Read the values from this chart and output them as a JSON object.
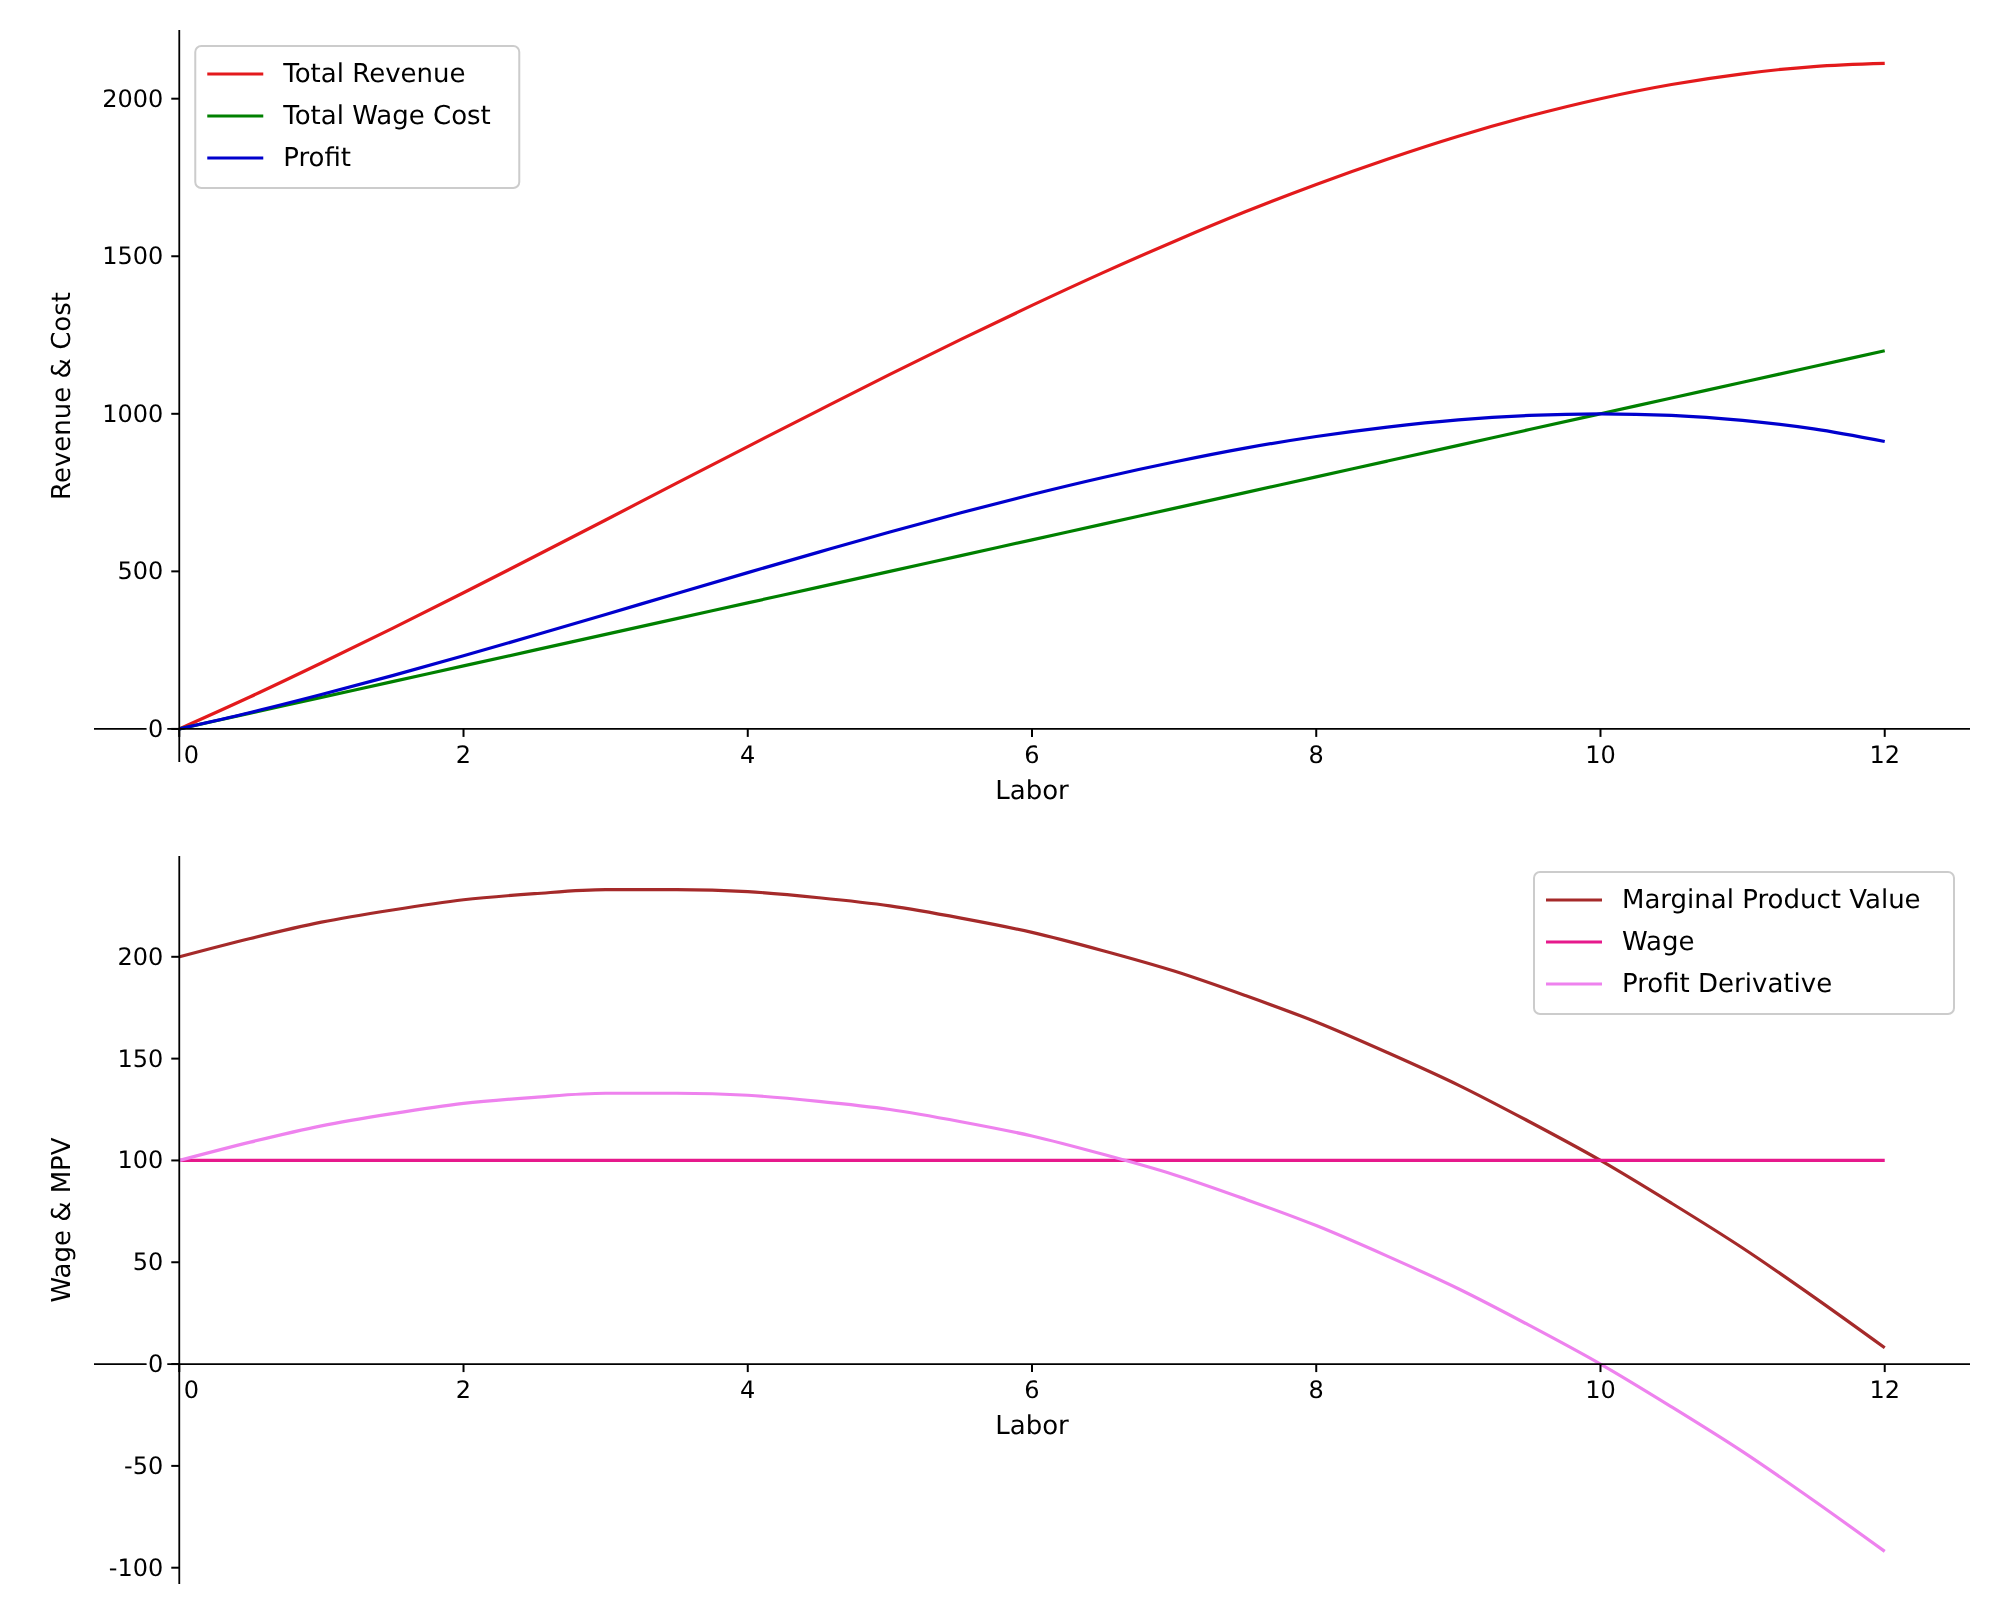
{
  "chart_data": [
    {
      "type": "line",
      "xlabel": "Labor",
      "ylabel": "Revenue & Cost",
      "x": [
        0,
        0.5,
        1,
        1.5,
        2,
        2.5,
        3,
        3.5,
        4,
        4.5,
        5,
        5.5,
        6,
        6.5,
        7,
        7.5,
        8,
        8.5,
        9,
        9.5,
        10,
        10.5,
        11,
        11.5,
        12
      ],
      "series": [
        {
          "name": "Total Revenue",
          "color": "#e31a1c",
          "values": [
            0,
            102,
            209,
            319,
            432,
            547,
            663,
            780,
            896,
            1011,
            1125,
            1236,
            1344,
            1448,
            1547,
            1641,
            1728,
            1808,
            1881,
            1945,
            2000,
            2045,
            2079,
            2102,
            2112
          ]
        },
        {
          "name": "Total Wage Cost",
          "color": "#008000",
          "values": [
            0,
            50,
            100,
            150,
            200,
            250,
            300,
            350,
            400,
            450,
            500,
            550,
            600,
            650,
            700,
            750,
            800,
            850,
            900,
            950,
            1000,
            1050,
            1100,
            1150,
            1200
          ]
        },
        {
          "name": "Profit",
          "color": "#0000cd",
          "values": [
            0,
            52,
            109,
            169,
            232,
            297,
            363,
            430,
            496,
            561,
            625,
            686,
            744,
            798,
            847,
            891,
            928,
            958,
            981,
            995,
            1000,
            995,
            979,
            952,
            912
          ]
        }
      ],
      "xlim": [
        -0.6,
        12.6
      ],
      "ylim": [
        -105,
        2218
      ],
      "xticks": [
        0,
        2,
        4,
        6,
        8,
        10,
        12
      ],
      "yticks": [
        0,
        500,
        1000,
        1500,
        2000
      ],
      "legend": "top left"
    },
    {
      "type": "line",
      "xlabel": "Labor",
      "ylabel": "Wage & MPV",
      "x": [
        0,
        0.5,
        1,
        1.5,
        2,
        2.5,
        3,
        3.5,
        4,
        4.5,
        5,
        5.5,
        6,
        6.5,
        7,
        7.5,
        8,
        8.5,
        9,
        9.5,
        10,
        10.5,
        11,
        11.5,
        12
      ],
      "series": [
        {
          "name": "Marginal Product Value",
          "color": "#a52a2a",
          "values": [
            200,
            209,
            217,
            223,
            228,
            231,
            233,
            233,
            232,
            229,
            225,
            219,
            212,
            203,
            193,
            181,
            168,
            153,
            137,
            119,
            100,
            79,
            57,
            33,
            8
          ]
        },
        {
          "name": "Wage",
          "color": "#e6198c",
          "values": [
            100,
            100,
            100,
            100,
            100,
            100,
            100,
            100,
            100,
            100,
            100,
            100,
            100,
            100,
            100,
            100,
            100,
            100,
            100,
            100,
            100,
            100,
            100,
            100,
            100
          ]
        },
        {
          "name": "Profit Derivative",
          "color": "#ee82ee",
          "values": [
            100,
            109,
            117,
            123,
            128,
            131,
            133,
            133,
            132,
            129,
            125,
            119,
            112,
            103,
            93,
            81,
            68,
            53,
            37,
            19,
            0,
            -21,
            -43,
            -67,
            -92
          ]
        }
      ],
      "xlim": [
        -0.6,
        12.6
      ],
      "ylim": [
        -108,
        249.5
      ],
      "xticks": [
        0,
        2,
        4,
        6,
        8,
        10,
        12
      ],
      "yticks": [
        -100,
        -50,
        0,
        50,
        100,
        150,
        200
      ],
      "legend": "top right"
    }
  ]
}
